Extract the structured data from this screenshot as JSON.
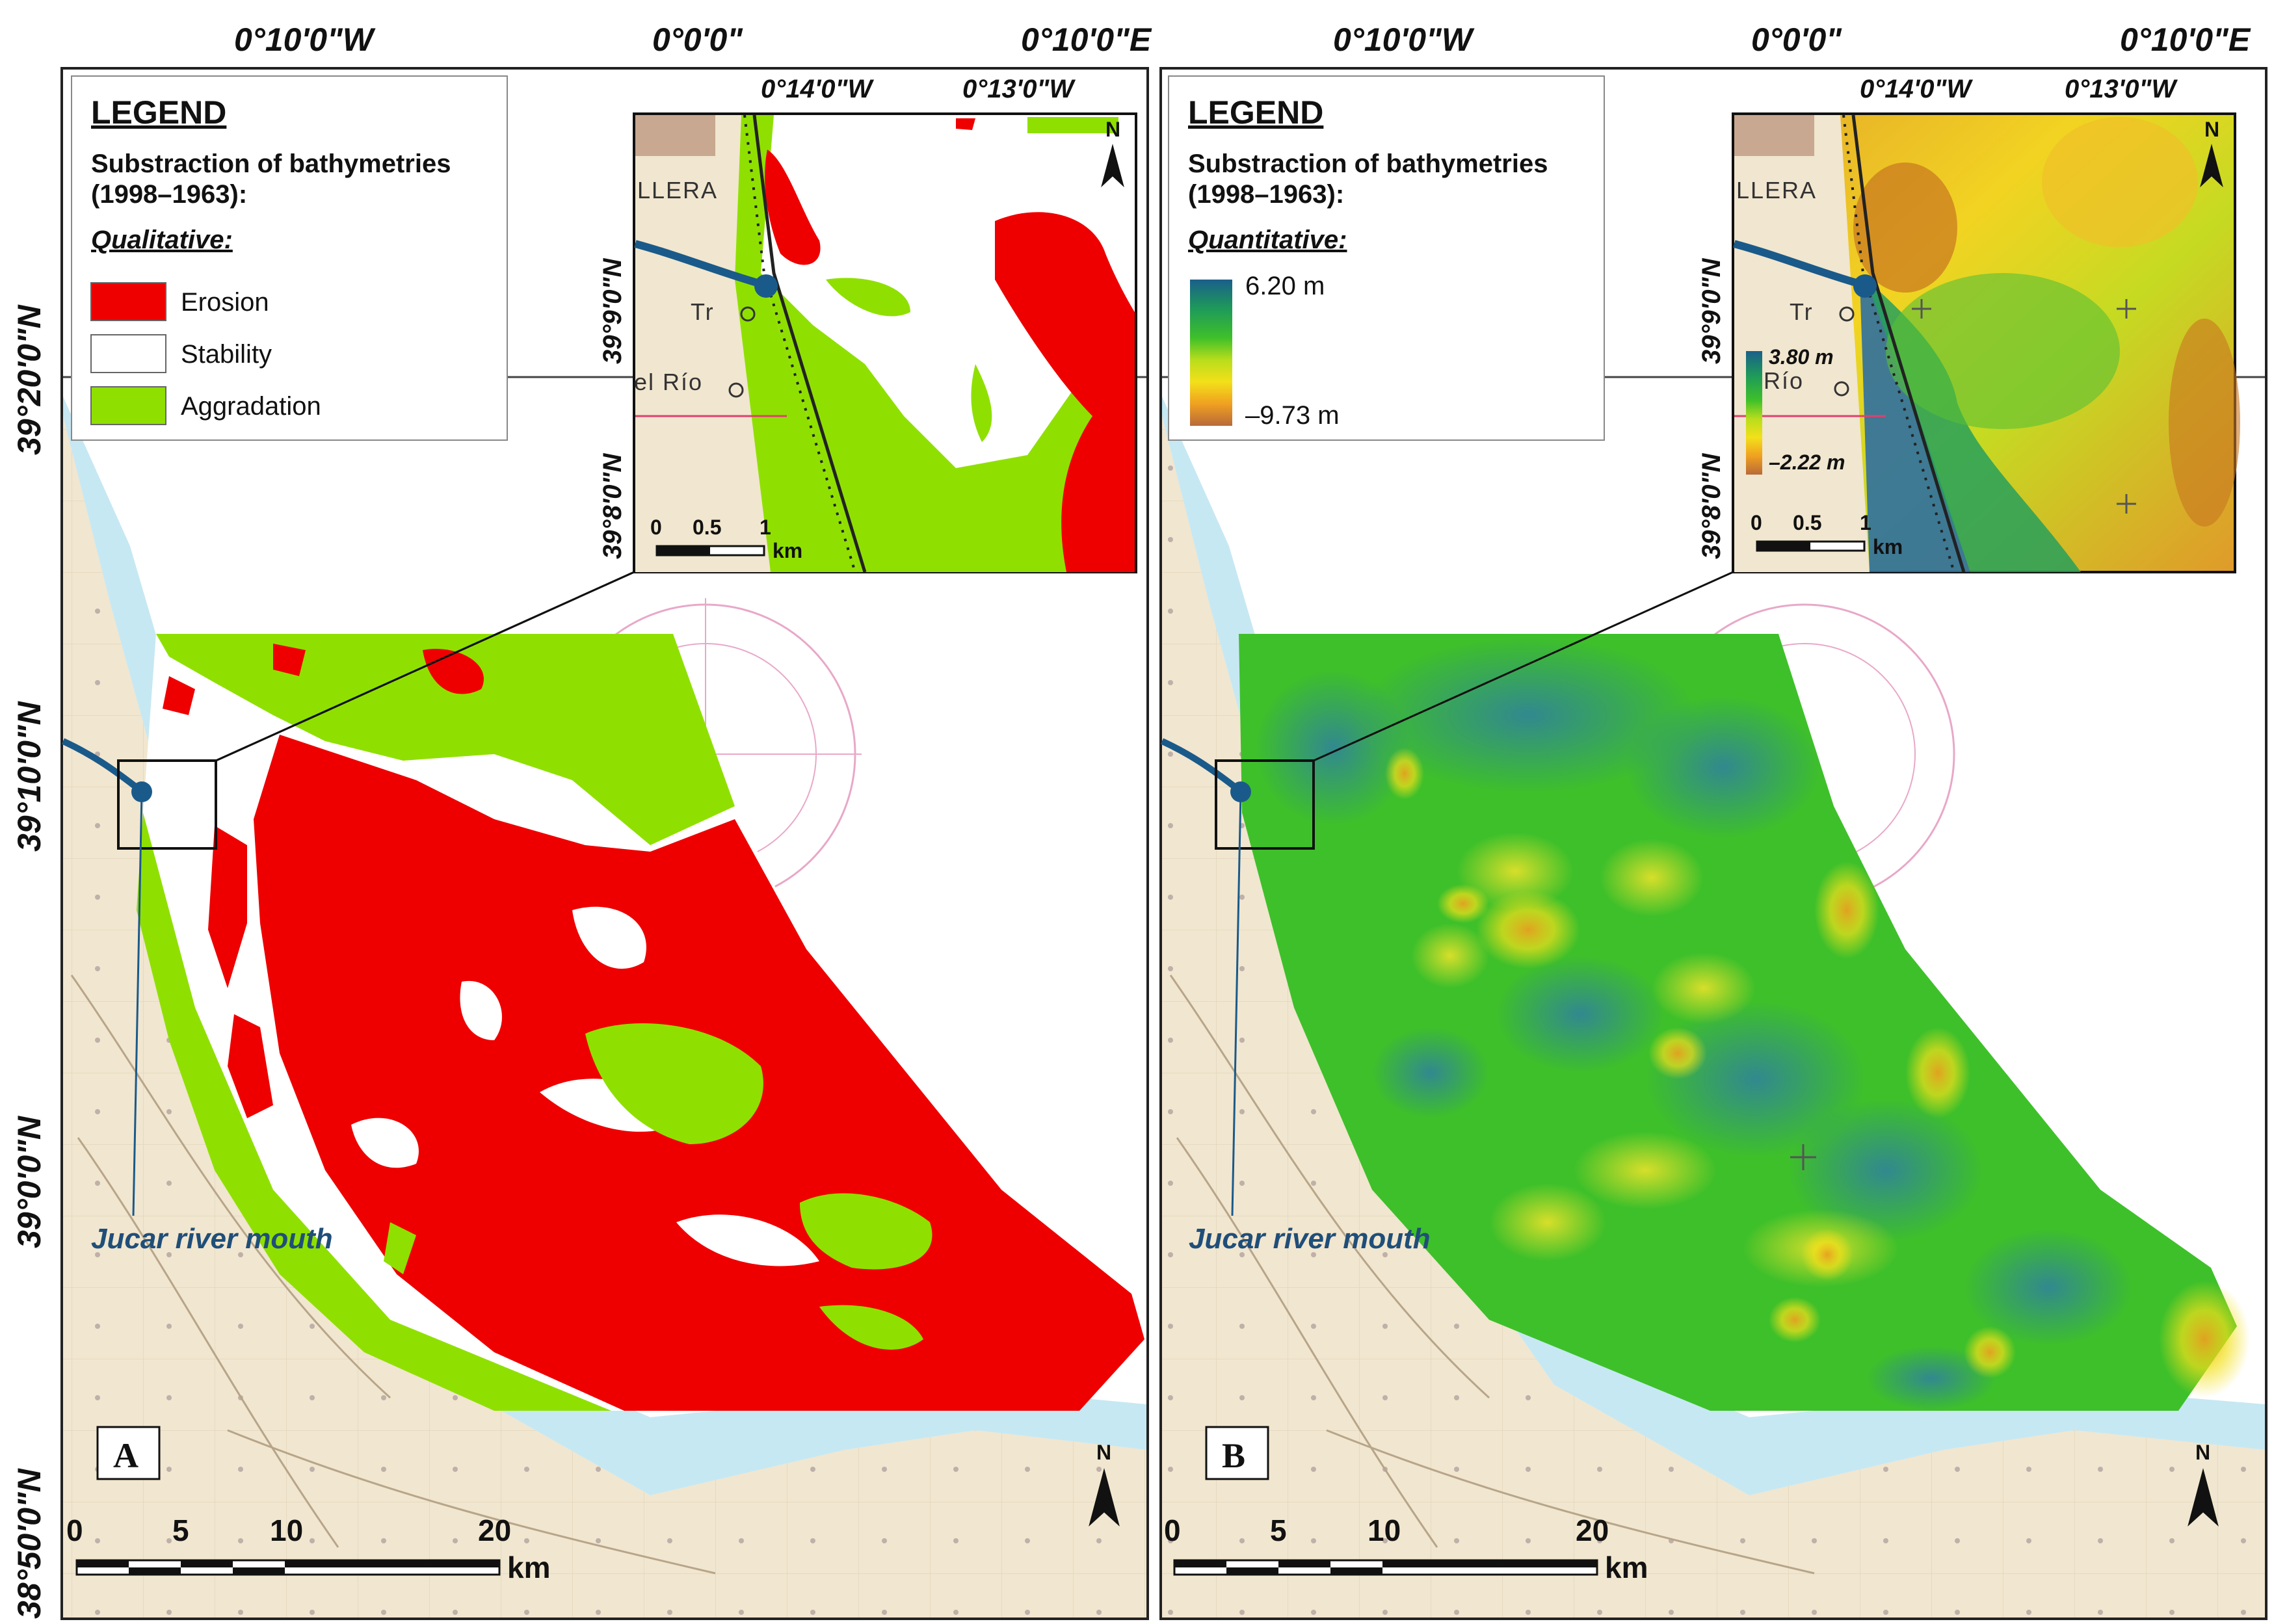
{
  "axes": {
    "top_ticks": [
      "0°10'0\"W",
      "0°0'0\"",
      "0°10'0\"E"
    ],
    "left_ticks": [
      "39°20'0\"N",
      "39°10'0\"N",
      "39°0'0\"N",
      "38°50'0\"N"
    ]
  },
  "panels": [
    {
      "label": "A",
      "legend": {
        "title": "LEGEND",
        "subtitle_line1": "Substraction of bathymetries",
        "subtitle_line2": "(1998–1963):",
        "section": "Qualitative:",
        "items": [
          {
            "label": "Erosion",
            "color": "#ee0000"
          },
          {
            "label": "Stability",
            "color": "#ffffff"
          },
          {
            "label": "Aggradation",
            "color": "#8fe000"
          }
        ]
      },
      "inset": {
        "top_ticks": [
          "0°14'0\"W",
          "0°13'0\"W"
        ],
        "left_ticks": [
          "39°9'0\"N",
          "39°8'0\"N"
        ],
        "place_labels": [
          "LLERA",
          "Tr",
          "el Río"
        ],
        "scale_ticks": [
          "0",
          "0.5",
          "1"
        ],
        "scale_unit": "km",
        "north": "N"
      },
      "annotation": "Jucar river mouth",
      "scale": {
        "ticks": [
          "0",
          "5",
          "10",
          "20"
        ],
        "unit": "km"
      },
      "north": "N"
    },
    {
      "label": "B",
      "legend": {
        "title": "LEGEND",
        "subtitle_line1": "Substraction of bathymetries",
        "subtitle_line2": "(1998–1963):",
        "section": "Quantitative:",
        "max_label": "6.20 m",
        "min_label": "–9.73 m",
        "colors": [
          "#1a5f8a",
          "#1e9a5a",
          "#3fc02a",
          "#b9dd1c",
          "#f3e01a",
          "#f0a020",
          "#b86a3a"
        ]
      },
      "inset": {
        "top_ticks": [
          "0°14'0\"W",
          "0°13'0\"W"
        ],
        "left_ticks": [
          "39°9'0\"N",
          "39°8'0\"N"
        ],
        "place_labels": [
          "LLERA",
          "Tr",
          "Río"
        ],
        "colorbar_max": "3.80 m",
        "colorbar_min": "–2.22 m",
        "scale_ticks": [
          "0",
          "0.5",
          "1"
        ],
        "scale_unit": "km",
        "north": "N"
      },
      "annotation": "Jucar river mouth",
      "scale": {
        "ticks": [
          "0",
          "5",
          "10",
          "20"
        ],
        "unit": "km"
      },
      "north": "N"
    }
  ]
}
